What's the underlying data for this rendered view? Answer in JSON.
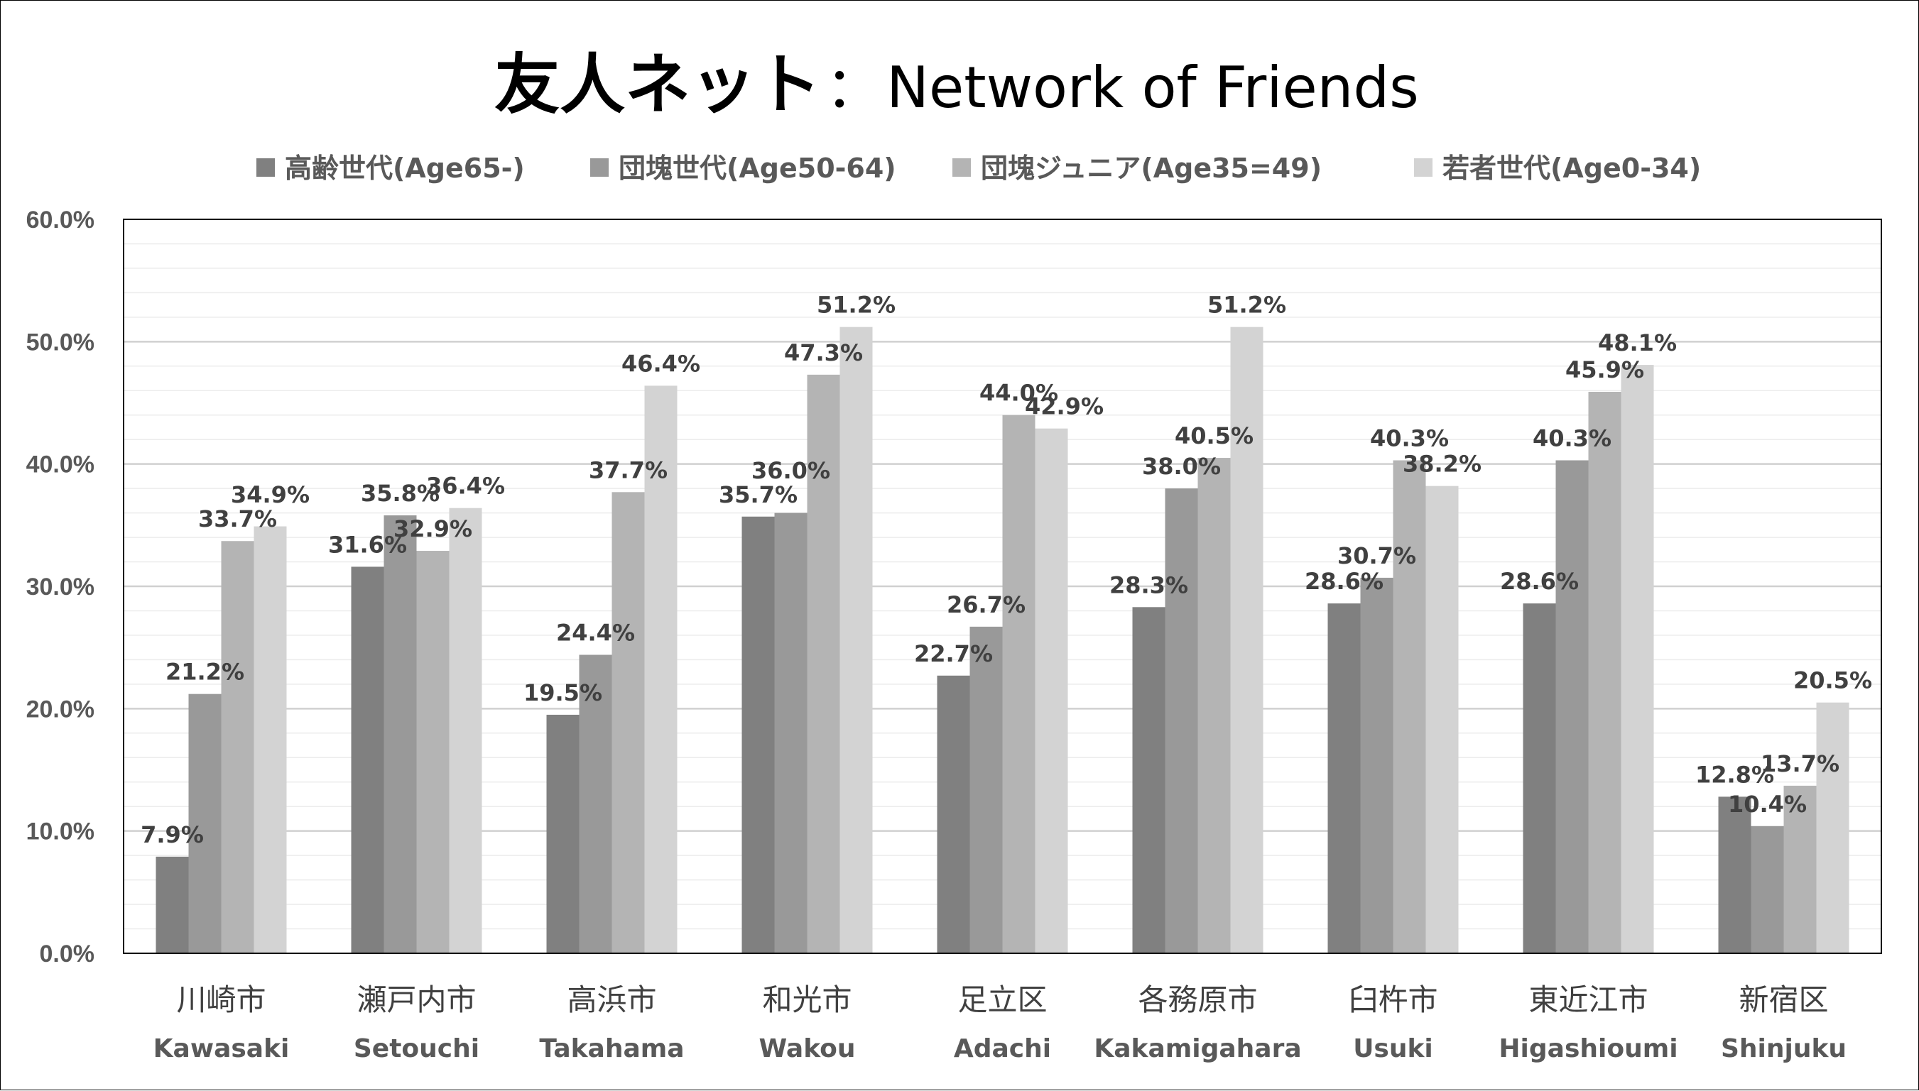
{
  "chart_data": {
    "type": "bar",
    "title": "友人ネット",
    "title_separator": "：",
    "subtitle": "Network of Friends",
    "categories": [
      "川崎市",
      "瀬戸内市",
      "高浜市",
      "和光市",
      "足立区",
      "各務原市",
      "臼杵市",
      "東近江市",
      "新宿区"
    ],
    "categories_en": [
      "Kawasaki",
      "Setouchi",
      "Takahama",
      "Wakou",
      "Adachi",
      "Kakamigahara",
      "Usuki",
      "Higashioumi",
      "Shinjuku"
    ],
    "series": [
      {
        "name": "高齢世代(Age65-)",
        "color": "#808080",
        "values": [
          7.9,
          31.6,
          19.5,
          35.7,
          22.7,
          28.3,
          28.6,
          28.6,
          12.8
        ]
      },
      {
        "name": "団塊世代(Age50-64)",
        "color": "#999999",
        "values": [
          21.2,
          35.8,
          24.4,
          36.0,
          26.7,
          38.0,
          30.7,
          40.3,
          10.4
        ]
      },
      {
        "name": "団塊ジュニア(Age35=49)",
        "color": "#b4b4b4",
        "values": [
          33.7,
          32.9,
          37.7,
          47.3,
          44.0,
          40.5,
          40.3,
          45.9,
          13.7
        ]
      },
      {
        "name": "若者世代(Age0-34)",
        "color": "#d3d3d3",
        "values": [
          34.9,
          36.4,
          46.4,
          51.2,
          42.9,
          51.2,
          38.2,
          48.1,
          20.5
        ]
      }
    ],
    "data_labels": [
      [
        "7.9%",
        "21.2%",
        "33.7%",
        "34.9%"
      ],
      [
        "31.6%",
        "35.8%",
        "32.9%",
        "36.4%"
      ],
      [
        "19.5%",
        "24.4%",
        "37.7%",
        "46.4%"
      ],
      [
        "35.7%",
        "36.0%",
        "47.3%",
        "51.2%"
      ],
      [
        "22.7%",
        "26.7%",
        "44.0%",
        "42.9%"
      ],
      [
        "28.3%",
        "38.0%",
        "40.5%",
        "51.2%"
      ],
      [
        "28.6%",
        "30.7%",
        "40.3%",
        "38.2%"
      ],
      [
        "28.6%",
        "40.3%",
        "45.9%",
        "48.1%"
      ],
      [
        "12.8%",
        "10.4%",
        "13.7%",
        "20.5%"
      ]
    ],
    "y_ticks": [
      "0.0%",
      "10.0%",
      "20.0%",
      "30.0%",
      "40.0%",
      "50.0%",
      "60.0%"
    ],
    "ylim": [
      0,
      60
    ],
    "y_major_step": 10,
    "y_minor_step": 2,
    "grid": true,
    "legend_position": "top",
    "xlabel": "",
    "ylabel": ""
  }
}
